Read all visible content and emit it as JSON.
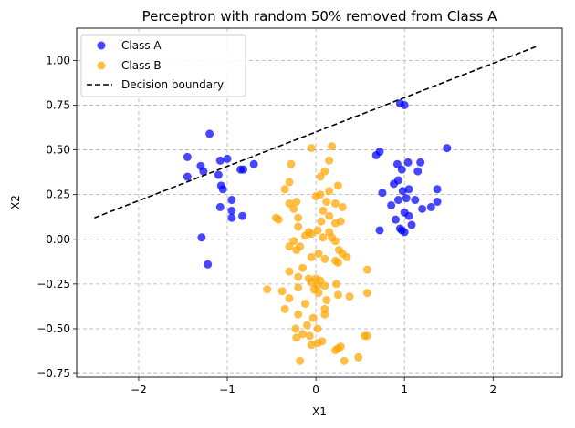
{
  "chart_data": {
    "type": "scatter",
    "title": "Perceptron with random 50% removed from Class A",
    "xlabel": "X1",
    "ylabel": "X2",
    "xlim": [
      -2.7,
      2.78
    ],
    "ylim": [
      -0.77,
      1.18
    ],
    "xticks": [
      -2,
      -1,
      0,
      1,
      2
    ],
    "yticks": [
      -0.75,
      -0.5,
      -0.25,
      0.0,
      0.25,
      0.5,
      0.75,
      1.0
    ],
    "xtick_labels": [
      "−2",
      "−1",
      "0",
      "1",
      "2"
    ],
    "ytick_labels": [
      "−0.75",
      "−0.50",
      "−0.25",
      "0.00",
      "0.25",
      "0.50",
      "0.75",
      "1.00"
    ],
    "grid": true,
    "legend_position": "top-left",
    "series": [
      {
        "name": "Class A",
        "color": "#0000ff",
        "marker": "circle",
        "points": [
          [
            -1.2,
            0.59
          ],
          [
            -1.45,
            0.46
          ],
          [
            -1.3,
            0.41
          ],
          [
            -1.27,
            0.38
          ],
          [
            -1.45,
            0.35
          ],
          [
            -1.08,
            0.44
          ],
          [
            -1.0,
            0.45
          ],
          [
            -1.1,
            0.36
          ],
          [
            -1.07,
            0.3
          ],
          [
            -1.05,
            0.28
          ],
          [
            -0.85,
            0.39
          ],
          [
            -0.82,
            0.39
          ],
          [
            -0.7,
            0.42
          ],
          [
            -0.95,
            0.22
          ],
          [
            -1.08,
            0.18
          ],
          [
            -0.95,
            0.16
          ],
          [
            -0.95,
            0.12
          ],
          [
            -0.83,
            0.13
          ],
          [
            -1.29,
            0.01
          ],
          [
            -1.22,
            -0.14
          ],
          [
            0.95,
            0.76
          ],
          [
            1.0,
            0.75
          ],
          [
            0.72,
            0.49
          ],
          [
            0.68,
            0.47
          ],
          [
            0.92,
            0.42
          ],
          [
            1.04,
            0.43
          ],
          [
            1.18,
            0.43
          ],
          [
            1.48,
            0.51
          ],
          [
            0.97,
            0.39
          ],
          [
            1.15,
            0.38
          ],
          [
            0.93,
            0.33
          ],
          [
            0.88,
            0.31
          ],
          [
            1.05,
            0.28
          ],
          [
            1.37,
            0.28
          ],
          [
            0.98,
            0.27
          ],
          [
            0.75,
            0.26
          ],
          [
            0.93,
            0.22
          ],
          [
            1.02,
            0.23
          ],
          [
            1.12,
            0.22
          ],
          [
            0.85,
            0.19
          ],
          [
            1.37,
            0.21
          ],
          [
            1.3,
            0.18
          ],
          [
            1.2,
            0.17
          ],
          [
            1.0,
            0.15
          ],
          [
            1.05,
            0.13
          ],
          [
            0.9,
            0.11
          ],
          [
            1.08,
            0.08
          ],
          [
            0.95,
            0.06
          ],
          [
            0.97,
            0.05
          ],
          [
            1.0,
            0.04
          ],
          [
            0.72,
            0.05
          ]
        ]
      },
      {
        "name": "Class B",
        "color": "#ffa500",
        "marker": "circle",
        "points": [
          [
            -0.28,
            0.42
          ],
          [
            -0.05,
            0.51
          ],
          [
            0.18,
            0.52
          ],
          [
            0.15,
            0.44
          ],
          [
            0.1,
            0.38
          ],
          [
            0.05,
            0.35
          ],
          [
            -0.3,
            0.32
          ],
          [
            0.25,
            0.3
          ],
          [
            -0.35,
            0.28
          ],
          [
            0.15,
            0.27
          ],
          [
            0.05,
            0.25
          ],
          [
            0.0,
            0.24
          ],
          [
            0.12,
            0.21
          ],
          [
            -0.22,
            0.21
          ],
          [
            -0.3,
            0.2
          ],
          [
            0.22,
            0.2
          ],
          [
            0.3,
            0.18
          ],
          [
            -0.25,
            0.17
          ],
          [
            0.08,
            0.16
          ],
          [
            0.15,
            0.13
          ],
          [
            0.28,
            0.1
          ],
          [
            0.06,
            0.1
          ],
          [
            -0.2,
            0.12
          ],
          [
            -0.45,
            0.12
          ],
          [
            0.22,
            0.09
          ],
          [
            -0.42,
            0.11
          ],
          [
            -0.2,
            0.07
          ],
          [
            0.02,
            0.05
          ],
          [
            0.15,
            0.04
          ],
          [
            -0.05,
            0.03
          ],
          [
            -0.08,
            0.04
          ],
          [
            -0.12,
            0.02
          ],
          [
            0.08,
            0.01
          ],
          [
            0.18,
            0.01
          ],
          [
            0.22,
            -0.01
          ],
          [
            -0.25,
            -0.01
          ],
          [
            -0.18,
            -0.04
          ],
          [
            -0.22,
            -0.06
          ],
          [
            0.26,
            -0.06
          ],
          [
            0.3,
            -0.08
          ],
          [
            -0.3,
            -0.04
          ],
          [
            0.03,
            -0.08
          ],
          [
            0.35,
            -0.1
          ],
          [
            0.1,
            -0.11
          ],
          [
            -0.05,
            -0.1
          ],
          [
            0.22,
            -0.12
          ],
          [
            0.25,
            -0.13
          ],
          [
            -0.15,
            -0.16
          ],
          [
            -0.3,
            -0.18
          ],
          [
            0.58,
            -0.17
          ],
          [
            -0.2,
            -0.21
          ],
          [
            -0.08,
            -0.22
          ],
          [
            0.0,
            -0.22
          ],
          [
            -0.05,
            -0.24
          ],
          [
            0.05,
            -0.23
          ],
          [
            0.02,
            -0.26
          ],
          [
            0.23,
            -0.25
          ],
          [
            -0.02,
            -0.28
          ],
          [
            0.1,
            -0.26
          ],
          [
            -0.55,
            -0.28
          ],
          [
            -0.38,
            -0.29
          ],
          [
            -0.2,
            -0.27
          ],
          [
            0.03,
            -0.3
          ],
          [
            0.25,
            -0.31
          ],
          [
            0.58,
            -0.3
          ],
          [
            -0.3,
            -0.33
          ],
          [
            0.12,
            -0.34
          ],
          [
            0.38,
            -0.32
          ],
          [
            -0.35,
            -0.39
          ],
          [
            -0.12,
            -0.36
          ],
          [
            0.1,
            -0.39
          ],
          [
            -0.2,
            -0.42
          ],
          [
            -0.03,
            -0.44
          ],
          [
            0.1,
            -0.42
          ],
          [
            -0.1,
            -0.48
          ],
          [
            -0.23,
            -0.5
          ],
          [
            0.02,
            -0.5
          ],
          [
            0.55,
            -0.54
          ],
          [
            0.58,
            -0.54
          ],
          [
            -0.15,
            -0.53
          ],
          [
            -0.22,
            -0.55
          ],
          [
            -0.07,
            -0.54
          ],
          [
            0.02,
            -0.58
          ],
          [
            0.07,
            -0.57
          ],
          [
            -0.05,
            -0.59
          ],
          [
            0.25,
            -0.61
          ],
          [
            0.28,
            -0.6
          ],
          [
            0.22,
            -0.62
          ],
          [
            0.48,
            -0.66
          ],
          [
            -0.18,
            -0.68
          ],
          [
            0.32,
            -0.68
          ]
        ]
      },
      {
        "name": "Decision boundary",
        "color": "#000000",
        "style": "dashed",
        "points": [
          [
            -2.5,
            0.12
          ],
          [
            2.5,
            1.08
          ]
        ]
      }
    ]
  }
}
